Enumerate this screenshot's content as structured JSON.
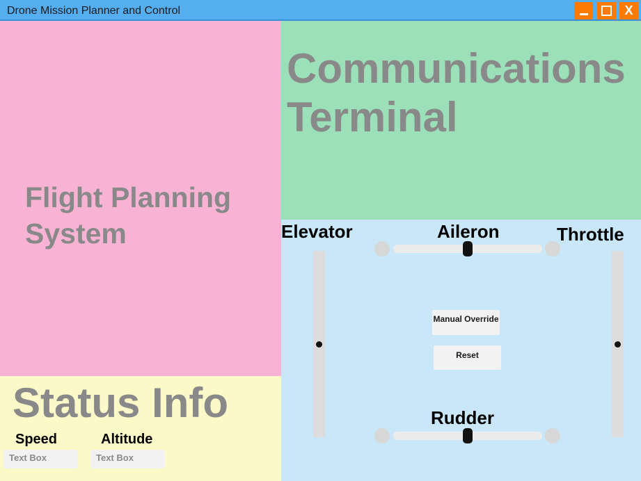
{
  "window": {
    "title": "Drone Mission Planner and Control",
    "buttons": {
      "minimize": "",
      "maximize": "",
      "close": "X"
    },
    "colors": {
      "titlebar": "#55aef0",
      "window_buttons": "#ff7a00"
    }
  },
  "flight_planning": {
    "title": "Flight Planning System",
    "color": "#f8b2d4"
  },
  "communications": {
    "title": "Communications Terminal",
    "color": "#9be0b8"
  },
  "status": {
    "title": "Status Info",
    "color": "#fbf9c8",
    "speed": {
      "label": "Speed",
      "value": "Text Box"
    },
    "altitude": {
      "label": "Altitude",
      "value": "Text Box"
    }
  },
  "controls": {
    "color": "#c9e7f8",
    "elevator": {
      "label": "Elevator",
      "level": 0.5
    },
    "aileron": {
      "label": "Aileron",
      "level": 0.5
    },
    "throttle": {
      "label": "Throttle",
      "level": 0.5
    },
    "rudder": {
      "label": "Rudder",
      "level": 0.5
    },
    "manual_override_label": "Manual Override",
    "reset_label": "Reset"
  }
}
